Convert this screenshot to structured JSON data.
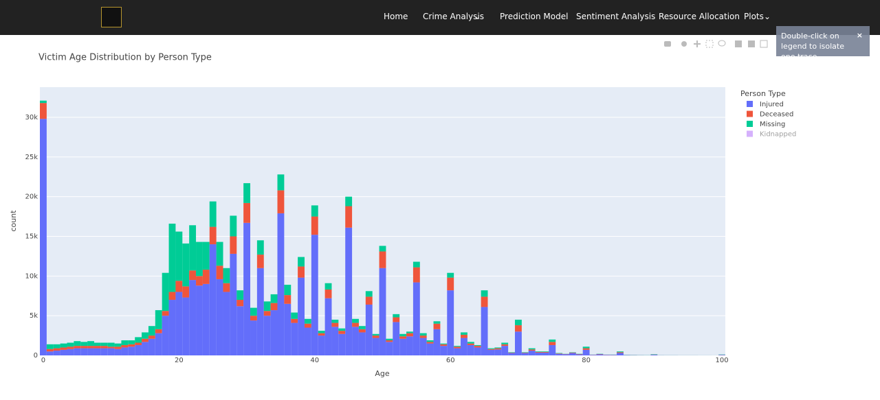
{
  "nav": {
    "items": [
      "Home",
      "Crime Analysis",
      "Prediction Model",
      "Sentiment Analysis",
      "Resource Allocation",
      "Plots"
    ]
  },
  "notifier": "Double-click on legend to isolate one trace",
  "chart_data": {
    "type": "histogram",
    "barmode": "stack",
    "title": "Victim Age Distribution by Person Type",
    "x_label": "Age",
    "y_label": "count",
    "legend_title": "Person Type",
    "bins": [
      -0.5,
      0.5,
      1.5,
      2.5,
      3.5,
      4.5,
      5.5,
      6.5,
      7.5,
      8.5,
      9.5,
      10.5,
      11.5,
      12.5,
      13.5,
      14.5,
      15.5,
      16.5,
      17.5,
      18.5,
      19.5,
      20.5,
      21.5,
      22.5,
      23.5,
      24.5,
      25.5,
      26.5,
      27.5,
      28.5,
      29.5,
      30.5,
      31.5,
      32.5,
      33.5,
      34.5,
      35.5,
      36.5,
      37.5,
      38.5,
      39.5,
      40.5,
      41.5,
      42.5,
      43.5,
      44.5,
      45.5,
      46.5,
      47.5,
      48.5,
      49.5,
      50.5,
      51.5,
      52.5,
      53.5,
      54.5,
      55.5,
      56.5,
      57.5,
      58.5,
      59.5,
      60.5,
      61.5,
      62.5,
      63.5,
      64.5,
      65.5,
      66.5,
      67.5,
      68.5,
      69.5,
      70.5,
      71.5,
      72.5,
      73.5,
      74.5,
      75.5,
      76.5,
      77.5,
      78.5,
      79.5,
      80.5,
      81.5,
      82.5,
      83.5,
      84.5,
      85.5,
      86.5,
      87.5,
      88.5,
      89.5,
      90.5,
      91.5,
      92.5,
      93.5,
      94.5,
      95.5,
      96.5,
      97.5,
      98.5,
      99.5,
      100.5
    ],
    "series": [
      {
        "name": "Injured",
        "color": "#636efa",
        "values": [
          29800,
          500,
          600,
          700,
          800,
          900,
          900,
          900,
          900,
          900,
          900,
          800,
          1000,
          1100,
          1300,
          1700,
          2100,
          2800,
          5000,
          7000,
          8000,
          7300,
          9500,
          8800,
          9000,
          14000,
          9600,
          8000,
          12800,
          6200,
          16700,
          4400,
          11000,
          5000,
          5700,
          17900,
          6500,
          4100,
          9800,
          3500,
          15200,
          2500,
          7200,
          3600,
          2700,
          16100,
          3600,
          2900,
          6400,
          2200,
          11000,
          1700,
          4200,
          2100,
          2400,
          9200,
          2200,
          1500,
          3300,
          1200,
          8200,
          900,
          2200,
          1300,
          1000,
          6100,
          700,
          750,
          1200,
          300,
          3000,
          300,
          600,
          350,
          350,
          1300,
          200,
          150,
          300,
          130,
          700,
          70,
          130,
          70,
          60,
          300,
          40,
          30,
          25,
          20,
          80,
          20,
          15,
          15,
          10,
          10,
          10,
          8,
          8,
          6,
          60
        ]
      },
      {
        "name": "Deceased",
        "color": "#ef553b",
        "values": [
          2000,
          300,
          300,
          300,
          300,
          300,
          300,
          300,
          300,
          300,
          200,
          300,
          300,
          300,
          300,
          400,
          400,
          500,
          600,
          1000,
          1400,
          1400,
          1200,
          1200,
          1800,
          2200,
          1700,
          1100,
          2200,
          800,
          2500,
          600,
          1700,
          600,
          900,
          2900,
          1100,
          500,
          1400,
          500,
          2300,
          300,
          1100,
          500,
          400,
          2700,
          500,
          400,
          1000,
          300,
          2100,
          200,
          600,
          300,
          400,
          1900,
          300,
          200,
          700,
          200,
          1600,
          200,
          400,
          200,
          200,
          1300,
          100,
          150,
          200,
          50,
          800,
          50,
          150,
          80,
          80,
          400,
          50,
          30,
          60,
          40,
          200,
          20,
          40,
          20,
          20,
          100,
          10,
          10,
          8,
          6,
          30,
          6,
          5,
          5,
          4,
          4,
          4,
          3,
          3,
          2,
          20
        ]
      },
      {
        "name": "Missing",
        "color": "#00cc96",
        "values": [
          300,
          600,
          500,
          500,
          500,
          600,
          500,
          600,
          400,
          400,
          500,
          400,
          600,
          500,
          700,
          800,
          1200,
          2400,
          4800,
          8600,
          6200,
          5400,
          5700,
          4300,
          3500,
          3200,
          3000,
          1900,
          2600,
          1200,
          2500,
          1000,
          1800,
          1200,
          1100,
          2000,
          1300,
          800,
          1200,
          600,
          1400,
          300,
          800,
          400,
          300,
          1200,
          500,
          400,
          700,
          200,
          700,
          200,
          400,
          300,
          200,
          700,
          300,
          200,
          300,
          100,
          600,
          100,
          300,
          200,
          100,
          800,
          100,
          100,
          200,
          50,
          700,
          50,
          150,
          70,
          70,
          300,
          50,
          20,
          40,
          30,
          200,
          10,
          30,
          10,
          20,
          100,
          20,
          20,
          15,
          15,
          40,
          10,
          10,
          10,
          8,
          8,
          8,
          6,
          6,
          5,
          30
        ]
      },
      {
        "name": "Kidnapped",
        "color": "#ab63fa",
        "visible": false
      }
    ],
    "xlim": [
      -0.5,
      100.5
    ],
    "xticks": [
      0,
      20,
      40,
      60,
      80,
      100
    ],
    "ylim": [
      0,
      33800
    ],
    "yticks": [
      0,
      {
        "value": 5000,
        "label": "5k"
      },
      {
        "value": 10000,
        "label": "10k"
      },
      {
        "value": 15000,
        "label": "15k"
      },
      {
        "value": 20000,
        "label": "20k"
      },
      {
        "value": 25000,
        "label": "25k"
      },
      {
        "value": 30000,
        "label": "30k"
      }
    ],
    "grid": true,
    "legend": "right"
  }
}
